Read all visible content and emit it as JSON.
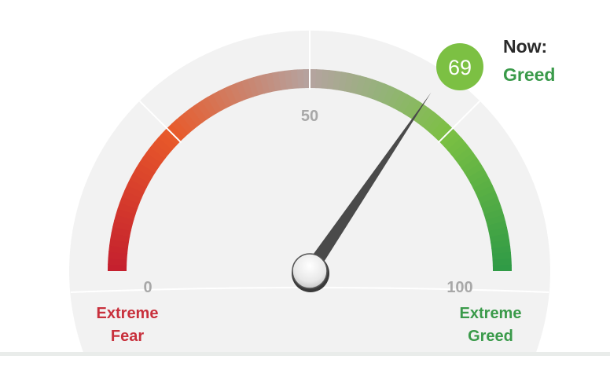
{
  "chart_data": {
    "type": "gauge",
    "value": 69,
    "range": [
      0,
      100
    ],
    "tick_labels": [
      "0",
      "50",
      "100"
    ],
    "end_labels": {
      "min": [
        "Extreme",
        "Fear"
      ],
      "max": [
        "Extreme",
        "Greed"
      ]
    },
    "current": {
      "value_label": "69",
      "prefix": "Now:",
      "rating": "Greed"
    },
    "color_stops": [
      {
        "at": 0,
        "color": "#c41f2e"
      },
      {
        "at": 25,
        "color": "#e85a2a"
      },
      {
        "at": 50,
        "color": "#b5a3a0"
      },
      {
        "at": 62,
        "color": "#95b27a"
      },
      {
        "at": 75,
        "color": "#7cc043"
      },
      {
        "at": 100,
        "color": "#2e9a46"
      }
    ],
    "colors": {
      "fear": "#c8303c",
      "greed": "#3a9a4a",
      "bubble": "#7cc043",
      "needle": "#4a4a4a"
    }
  }
}
